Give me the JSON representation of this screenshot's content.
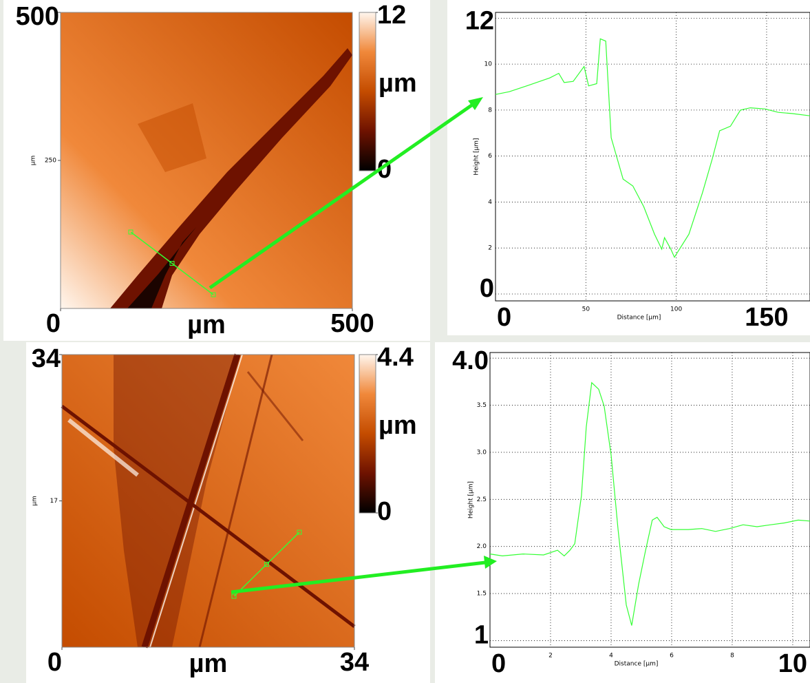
{
  "chart_data": [
    {
      "type": "map",
      "xlim": [
        0,
        500
      ],
      "ylim": [
        0,
        500
      ],
      "xticks": [
        0,
        500
      ],
      "yticks": [
        250,
        500
      ],
      "xlabel": "µm",
      "ylabel": "µm",
      "colorbar": {
        "lim": [
          0,
          12
        ],
        "ticks": [
          0,
          12
        ],
        "label": "µm"
      },
      "colormap": [
        "#000000",
        "#6e1200",
        "#c44c00",
        "#f0883a",
        "#fff6ee"
      ]
    },
    {
      "type": "line",
      "xlabel": "Distance [µm]",
      "ylabel": "Height [µm]",
      "xlim": [
        0,
        174
      ],
      "ylim": [
        -0.3,
        12.25
      ],
      "xticks": [
        0,
        50,
        100,
        150
      ],
      "yticks": [
        0,
        2,
        4,
        6,
        8,
        10,
        12
      ],
      "grid": true,
      "x": [
        0,
        7.6,
        19,
        30,
        35,
        38,
        43,
        49,
        51.5,
        56,
        58,
        61,
        64,
        70.6,
        76,
        82,
        88,
        92,
        93.5,
        97,
        99,
        107,
        114.5,
        120,
        124,
        130,
        135.5,
        141,
        149,
        156.5,
        164,
        174
      ],
      "series": [
        {
          "color": "#33ff33",
          "values": [
            8.68,
            8.8,
            9.1,
            9.4,
            9.6,
            9.2,
            9.25,
            9.9,
            9.05,
            9.15,
            11.1,
            11.0,
            6.8,
            5.0,
            4.7,
            3.8,
            2.6,
            1.95,
            2.45,
            1.95,
            1.6,
            2.6,
            4.4,
            5.9,
            7.1,
            7.3,
            8.0,
            8.1,
            8.05,
            7.9,
            7.85,
            7.75
          ]
        }
      ]
    },
    {
      "type": "map",
      "xlim": [
        0,
        34
      ],
      "ylim": [
        0,
        34
      ],
      "xticks": [
        0,
        34
      ],
      "yticks": [
        17,
        34
      ],
      "xlabel": "µm",
      "ylabel": "µm",
      "colorbar": {
        "lim": [
          0,
          4.4
        ],
        "ticks": [
          0,
          4.4
        ],
        "label": "µm"
      },
      "colormap": [
        "#000000",
        "#6e1200",
        "#c44c00",
        "#f0883a",
        "#fff6ee"
      ]
    },
    {
      "type": "line",
      "xlabel": "Distance [µm]",
      "ylabel": "Height [µm]",
      "xlim": [
        0,
        10.57
      ],
      "ylim": [
        0.93,
        4.06
      ],
      "xticks": [
        0,
        2,
        4,
        6,
        8,
        10
      ],
      "yticks": [
        1,
        1.5,
        {
          "value": 2,
          "label": "2.0"
        },
        2.5,
        {
          "value": 3,
          "label": "3.0"
        },
        3.5,
        {
          "value": 4,
          "label": "4.0"
        }
      ],
      "grid": true,
      "x": [
        0,
        0.41,
        1.09,
        1.77,
        2.23,
        2.45,
        2.64,
        2.8,
        3.02,
        3.18,
        3.36,
        3.59,
        3.77,
        4.0,
        4.23,
        4.5,
        4.68,
        4.91,
        5.14,
        5.36,
        5.52,
        5.75,
        5.98,
        6.55,
        7.0,
        7.45,
        7.91,
        8.36,
        8.82,
        9.27,
        9.73,
        10.18,
        10.57
      ],
      "series": [
        {
          "color": "#33ff33",
          "values": [
            1.92,
            1.9,
            1.92,
            1.91,
            1.96,
            1.9,
            1.96,
            2.03,
            2.54,
            3.27,
            3.74,
            3.67,
            3.49,
            2.97,
            2.18,
            1.38,
            1.16,
            1.6,
            1.96,
            2.28,
            2.31,
            2.21,
            2.18,
            2.18,
            2.19,
            2.16,
            2.19,
            2.23,
            2.21,
            2.23,
            2.25,
            2.28,
            2.27
          ]
        }
      ]
    }
  ]
}
